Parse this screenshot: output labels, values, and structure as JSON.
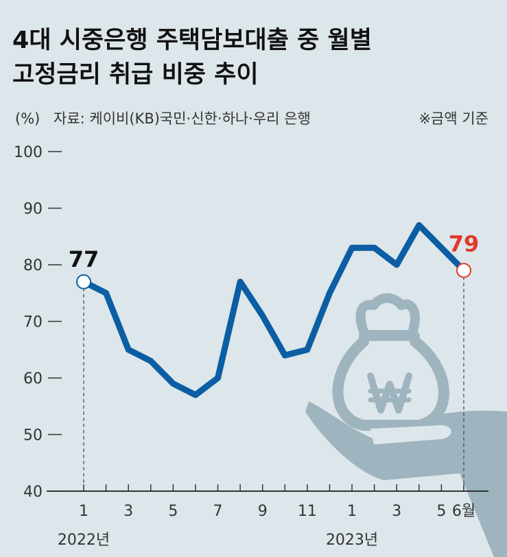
{
  "chart_data": {
    "type": "line",
    "title": [
      "4대 시중은행 주택담보대출 중 월별",
      "고정금리 취급 비중 추이"
    ],
    "unit": "(%)",
    "source": "자료: 케이비(KB)국민·신한·하나·우리 은행",
    "note": "※금액 기준",
    "categories": [
      "1",
      null,
      "3",
      null,
      "5",
      null,
      "7",
      null,
      "9",
      null,
      "11",
      null,
      "1",
      null,
      "3",
      null,
      "5",
      "6월"
    ],
    "year_labels": [
      "2022년",
      "2023년"
    ],
    "series": [
      {
        "color": "#0b5ea3",
        "values": [
          77,
          75,
          65,
          63,
          59,
          57,
          60,
          77,
          71,
          64,
          65,
          75,
          83,
          83,
          80,
          87,
          83,
          79
        ]
      }
    ],
    "highlight_color": "#e0382b",
    "ylim": [
      40,
      100
    ],
    "yticks": [
      40,
      50,
      60,
      70,
      80,
      90,
      100
    ],
    "grid": false
  }
}
